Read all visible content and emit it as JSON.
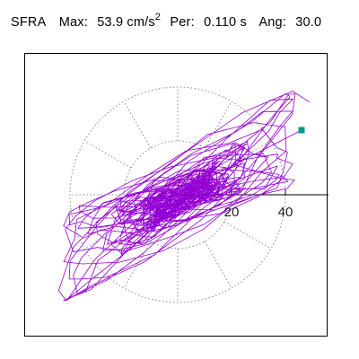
{
  "header": {
    "station": "SFRA",
    "max_label": "Max:",
    "max_value": "53.9 cm/s",
    "max_exponent": "2",
    "period_label": "Per:",
    "period_value": "0.110 s",
    "angle_label": "Ang:",
    "angle_value": "30.0"
  },
  "chart_data": {
    "type": "scatter",
    "title": "",
    "xlabel": "",
    "ylabel": "",
    "units": "cm/s2",
    "polar_grid_radii": [
      20,
      40
    ],
    "polar_spokes_deg": [
      0,
      30,
      60,
      90,
      120,
      150,
      180,
      210,
      240,
      270,
      300,
      330
    ],
    "tick_labels": [
      "20",
      "40"
    ],
    "grid": true,
    "trace_color": "#9400d3",
    "marker_color": "#009a88",
    "marker_point": [
      46,
      24
    ]
  }
}
